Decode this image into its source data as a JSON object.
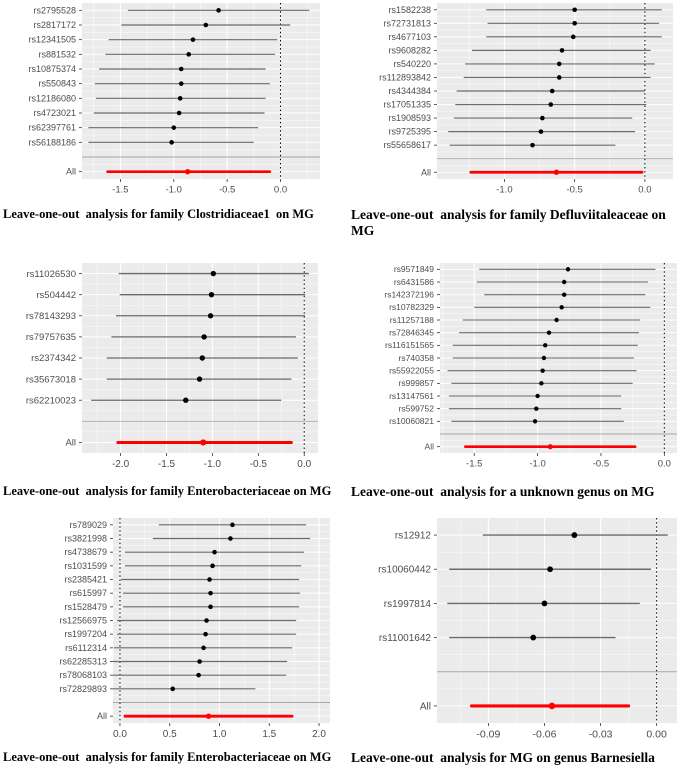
{
  "colors": {
    "panel_bg": "#EBEBEB",
    "grid_major": "#FFFFFF",
    "grid_minor": "#F7F7F7",
    "whisker": "#6B6B6B",
    "point": "#000000",
    "all_line": "#FF0000",
    "axis_text": "#4D4D4D",
    "tick_mark": "#333333",
    "separator": "#A6A6A6",
    "refline": "#000000"
  },
  "chart_data": [
    {
      "type": "scatter",
      "subtype": "forest-leave-one-out",
      "title": "Leave-one-out  analysis for family Clostridiaceae1  on MG",
      "xlim": [
        -1.86,
        0.37
      ],
      "refline_x": 0,
      "legend": "none",
      "grid": "on",
      "xticks": [
        {
          "v": -1.5,
          "label": "-1.5"
        },
        {
          "v": -1.0,
          "label": "-1.0"
        },
        {
          "v": -0.5,
          "label": "-0.5"
        },
        {
          "v": 0.0,
          "label": "0.0"
        }
      ],
      "rows": [
        {
          "label": "rs2795528",
          "est": -0.58,
          "lo": -1.43,
          "hi": 0.27
        },
        {
          "label": "rs2817172",
          "est": -0.7,
          "lo": -1.49,
          "hi": 0.09
        },
        {
          "label": "rs12341505",
          "est": -0.82,
          "lo": -1.61,
          "hi": -0.03
        },
        {
          "label": "rs881532",
          "est": -0.86,
          "lo": -1.64,
          "hi": -0.05
        },
        {
          "label": "rs10875374",
          "est": -0.93,
          "lo": -1.7,
          "hi": -0.14
        },
        {
          "label": "rs550843",
          "est": -0.93,
          "lo": -1.74,
          "hi": -0.1
        },
        {
          "label": "rs12186080",
          "est": -0.94,
          "lo": -1.73,
          "hi": -0.14
        },
        {
          "label": "rs4723021",
          "est": -0.95,
          "lo": -1.75,
          "hi": -0.15
        },
        {
          "label": "rs62397761",
          "est": -1.0,
          "lo": -1.8,
          "hi": -0.21
        },
        {
          "label": "rs56188186",
          "est": -1.02,
          "lo": -1.8,
          "hi": -0.25
        }
      ],
      "all": {
        "label": "All",
        "est": -0.87,
        "lo": -1.62,
        "hi": -0.1
      }
    },
    {
      "type": "scatter",
      "subtype": "forest-leave-one-out",
      "title": "Leave-one-out  analysis for family Defluviitaleaceae on MG",
      "xlim": [
        -1.48,
        0.2
      ],
      "refline_x": 0,
      "legend": "none",
      "grid": "on",
      "xticks": [
        {
          "v": -1.0,
          "label": "-1.0"
        },
        {
          "v": -0.5,
          "label": "-0.5"
        },
        {
          "v": 0.0,
          "label": "0.0"
        }
      ],
      "rows": [
        {
          "label": "rs1582238",
          "est": -0.5,
          "lo": -1.13,
          "hi": 0.12
        },
        {
          "label": "rs72731813",
          "est": -0.5,
          "lo": -1.12,
          "hi": 0.1
        },
        {
          "label": "rs4677103",
          "est": -0.51,
          "lo": -1.13,
          "hi": 0.12
        },
        {
          "label": "rs9608282",
          "est": -0.59,
          "lo": -1.23,
          "hi": 0.04
        },
        {
          "label": "rs540220",
          "est": -0.61,
          "lo": -1.28,
          "hi": 0.07
        },
        {
          "label": "rs112893842",
          "est": -0.61,
          "lo": -1.29,
          "hi": 0.04
        },
        {
          "label": "rs4344384",
          "est": -0.66,
          "lo": -1.34,
          "hi": 0.0
        },
        {
          "label": "rs17051335",
          "est": -0.67,
          "lo": -1.35,
          "hi": 0.01
        },
        {
          "label": "rs1908593",
          "est": -0.73,
          "lo": -1.36,
          "hi": -0.09
        },
        {
          "label": "rs9725395",
          "est": -0.74,
          "lo": -1.4,
          "hi": -0.07
        },
        {
          "label": "rs55658617",
          "est": -0.8,
          "lo": -1.39,
          "hi": -0.21
        }
      ],
      "all": {
        "label": "All",
        "est": -0.63,
        "lo": -1.24,
        "hi": -0.02
      }
    },
    {
      "type": "scatter",
      "subtype": "forest-leave-one-out",
      "title": "Leave-one-out  analysis for family Enterobacteriaceae on MG",
      "xlim": [
        -2.42,
        0.15
      ],
      "refline_x": 0,
      "legend": "none",
      "grid": "on",
      "xticks": [
        {
          "v": -2.0,
          "label": "-2.0"
        },
        {
          "v": -1.5,
          "label": "-1.5"
        },
        {
          "v": -1.0,
          "label": "-1.0"
        },
        {
          "v": -0.5,
          "label": "-0.5"
        },
        {
          "v": 0.0,
          "label": "0.0"
        }
      ],
      "rows": [
        {
          "label": "rs11026530",
          "est": -0.99,
          "lo": -2.02,
          "hi": 0.05
        },
        {
          "label": "rs504442",
          "est": -1.01,
          "lo": -2.01,
          "hi": 0.01
        },
        {
          "label": "rs78143293",
          "est": -1.02,
          "lo": -2.05,
          "hi": 0.01
        },
        {
          "label": "rs79757635",
          "est": -1.09,
          "lo": -2.1,
          "hi": -0.09
        },
        {
          "label": "rs2374342",
          "est": -1.11,
          "lo": -2.15,
          "hi": -0.07
        },
        {
          "label": "rs35673018",
          "est": -1.14,
          "lo": -2.15,
          "hi": -0.14
        },
        {
          "label": "rs62210023",
          "est": -1.29,
          "lo": -2.32,
          "hi": -0.25
        }
      ],
      "all": {
        "label": "All",
        "est": -1.1,
        "lo": -2.03,
        "hi": -0.14
      }
    },
    {
      "type": "scatter",
      "subtype": "forest-leave-one-out",
      "title": "Leave-one-out  analysis for a unknown genus on MG",
      "xlim": [
        -1.77,
        0.1
      ],
      "refline_x": 0,
      "legend": "none",
      "grid": "on",
      "xticks": [
        {
          "v": -1.5,
          "label": "-1.5"
        },
        {
          "v": -1.0,
          "label": "-1.0"
        },
        {
          "v": -0.5,
          "label": "-0.5"
        },
        {
          "v": 0.0,
          "label": "0.0"
        }
      ],
      "rows": [
        {
          "label": "rs9571849",
          "est": -0.76,
          "lo": -1.46,
          "hi": -0.07
        },
        {
          "label": "rs6431586",
          "est": -0.79,
          "lo": -1.48,
          "hi": -0.13
        },
        {
          "label": "rs142372196",
          "est": -0.79,
          "lo": -1.42,
          "hi": -0.15
        },
        {
          "label": "rs10782329",
          "est": -0.81,
          "lo": -1.5,
          "hi": -0.11
        },
        {
          "label": "rs11257188",
          "est": -0.85,
          "lo": -1.59,
          "hi": -0.19
        },
        {
          "label": "rs72846345",
          "est": -0.91,
          "lo": -1.62,
          "hi": -0.2
        },
        {
          "label": "rs116151565",
          "est": -0.94,
          "lo": -1.67,
          "hi": -0.21
        },
        {
          "label": "rs740358",
          "est": -0.95,
          "lo": -1.67,
          "hi": -0.24
        },
        {
          "label": "rs55922055",
          "est": -0.96,
          "lo": -1.71,
          "hi": -0.22
        },
        {
          "label": "rs999857",
          "est": -0.97,
          "lo": -1.68,
          "hi": -0.25
        },
        {
          "label": "rs13147561",
          "est": -1.0,
          "lo": -1.7,
          "hi": -0.34
        },
        {
          "label": "rs599752",
          "est": -1.01,
          "lo": -1.7,
          "hi": -0.34
        },
        {
          "label": "rs10060821",
          "est": -1.02,
          "lo": -1.68,
          "hi": -0.32
        }
      ],
      "all": {
        "label": "All",
        "est": -0.9,
        "lo": -1.57,
        "hi": -0.23
      }
    },
    {
      "type": "scatter",
      "subtype": "forest-leave-one-out",
      "title": "Leave-one-out  analysis for family Enterobacteriaceae on MG",
      "xlim": [
        -0.07,
        2.11
      ],
      "refline_x": 0,
      "legend": "none",
      "grid": "on",
      "xticks": [
        {
          "v": 0.0,
          "label": "0.0"
        },
        {
          "v": 0.5,
          "label": "0.5"
        },
        {
          "v": 1.0,
          "label": "1.0"
        },
        {
          "v": 1.5,
          "label": "1.5"
        },
        {
          "v": 2.0,
          "label": "2.0"
        }
      ],
      "rows": [
        {
          "label": "rs789029",
          "est": 1.13,
          "lo": 0.39,
          "hi": 1.87
        },
        {
          "label": "rs3821998",
          "est": 1.11,
          "lo": 0.33,
          "hi": 1.91
        },
        {
          "label": "rs4738679",
          "est": 0.95,
          "lo": 0.05,
          "hi": 1.85
        },
        {
          "label": "rs1031599",
          "est": 0.93,
          "lo": 0.05,
          "hi": 1.82
        },
        {
          "label": "rs2385421",
          "est": 0.9,
          "lo": 0.01,
          "hi": 1.8
        },
        {
          "label": "rs615997",
          "est": 0.91,
          "lo": 0.03,
          "hi": 1.81
        },
        {
          "label": "rs1528479",
          "est": 0.91,
          "lo": 0.03,
          "hi": 1.8
        },
        {
          "label": "rs12566975",
          "est": 0.87,
          "lo": -0.03,
          "hi": 1.77
        },
        {
          "label": "rs1997204",
          "est": 0.86,
          "lo": -0.03,
          "hi": 1.77
        },
        {
          "label": "rs6112314",
          "est": 0.84,
          "lo": -0.06,
          "hi": 1.73
        },
        {
          "label": "rs62285313",
          "est": 0.8,
          "lo": -0.08,
          "hi": 1.68
        },
        {
          "label": "rs78068103",
          "est": 0.79,
          "lo": -0.12,
          "hi": 1.67
        },
        {
          "label": "rs72829893",
          "est": 0.53,
          "lo": -0.27,
          "hi": 1.36
        }
      ],
      "all": {
        "label": "All",
        "est": 0.89,
        "lo": 0.05,
        "hi": 1.73
      }
    },
    {
      "type": "scatter",
      "subtype": "forest-leave-one-out",
      "title": "Leave-one-out  analysis for MG on genus Barnesiella",
      "xlim": [
        -0.1175,
        0.0109
      ],
      "refline_x": 0,
      "legend": "none",
      "grid": "on",
      "xticks": [
        {
          "v": -0.09,
          "label": "-0.09"
        },
        {
          "v": -0.06,
          "label": "-0.06"
        },
        {
          "v": -0.03,
          "label": "-0.03"
        },
        {
          "v": 0.0,
          "label": "0.00"
        }
      ],
      "rows": [
        {
          "label": "rs12912",
          "est": -0.044,
          "lo": -0.093,
          "hi": 0.006
        },
        {
          "label": "rs10060442",
          "est": -0.057,
          "lo": -0.111,
          "hi": -0.003
        },
        {
          "label": "rs1997814",
          "est": -0.06,
          "lo": -0.112,
          "hi": -0.009
        },
        {
          "label": "rs11001642",
          "est": -0.066,
          "lo": -0.111,
          "hi": -0.022
        }
      ],
      "all": {
        "label": "All",
        "est": -0.056,
        "lo": -0.099,
        "hi": -0.015
      }
    }
  ]
}
